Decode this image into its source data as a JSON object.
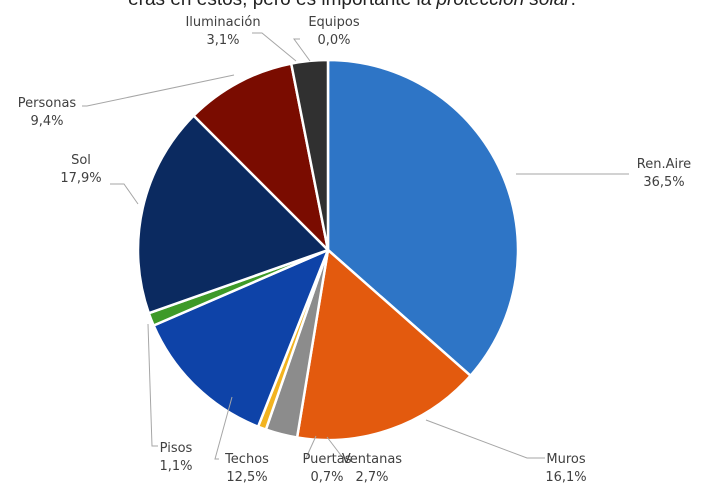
{
  "caption": {
    "part1": "eras en estos, pero es importante la ",
    "emphasis": "protección solar",
    "part2": "."
  },
  "chart_data": {
    "type": "pie",
    "title": "",
    "start_angle_deg": 0,
    "direction": "clockwise",
    "slices": [
      {
        "label": "Ren.Aire",
        "display": "36,5%",
        "value": 36.5,
        "color": "#2e75c6"
      },
      {
        "label": "Muros",
        "display": "16,1%",
        "value": 16.1,
        "color": "#e35a0e"
      },
      {
        "label": "Ventanas",
        "display": "2,7%",
        "value": 2.7,
        "color": "#8c8c8c"
      },
      {
        "label": "Puertas",
        "display": "0,7%",
        "value": 0.7,
        "color": "#f2b320"
      },
      {
        "label": "Techos",
        "display": "12,5%",
        "value": 12.5,
        "color": "#0e43a8"
      },
      {
        "label": "Pisos",
        "display": "1,1%",
        "value": 1.1,
        "color": "#3e9a28"
      },
      {
        "label": "Sol",
        "display": "17,9%",
        "value": 17.9,
        "color": "#0b2a60"
      },
      {
        "label": "Personas",
        "display": "9,4%",
        "value": 9.4,
        "color": "#7a0c00"
      },
      {
        "label": "Iluminación",
        "display": "3,1%",
        "value": 3.1,
        "color": "#303030"
      },
      {
        "label": "Equipos",
        "display": "0,0%",
        "value": 0.0,
        "color": "#1f1f1f"
      }
    ]
  }
}
